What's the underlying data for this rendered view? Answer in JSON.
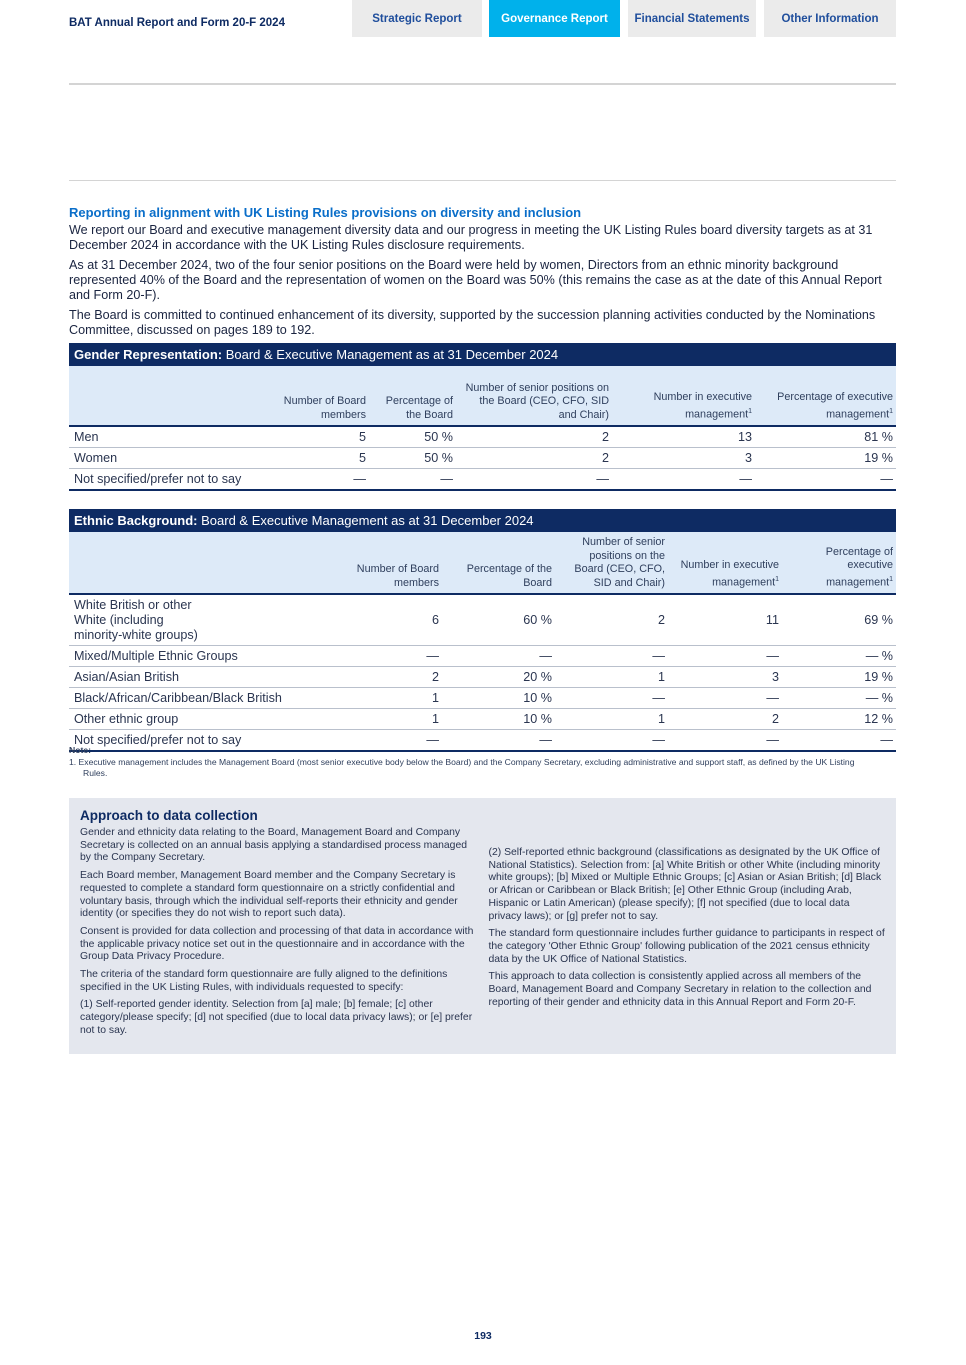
{
  "header": {
    "doc_title": "BAT Annual Report and Form 20-F 2024",
    "tabs": [
      {
        "label": "Strategic Report",
        "active": false
      },
      {
        "label": "Governance Report",
        "active": true
      },
      {
        "label": "Financial Statements",
        "active": false
      },
      {
        "label": "Other Information",
        "active": false
      }
    ]
  },
  "colors": {
    "navy": "#0e2b63",
    "active_tab": "#00b1eb",
    "heading_blue": "#0a6ec9",
    "panel": "#e4e7ee"
  },
  "intro": {
    "heading": "Reporting in alignment with UK Listing Rules provisions on diversity and inclusion",
    "paragraphs": [
      "We report our Board and executive management diversity data and our progress in meeting the UK Listing Rules board diversity targets as at 31 December 2024 in accordance with the UK Listing Rules disclosure requirements.",
      "As at 31 December 2024, two of the four senior positions on the Board were held by women, Directors from an ethnic minority background represented 40% of the Board and the representation of women on the Board was 50% (this remains the case as at the date of this Annual Report and Form 20-F).",
      "The Board is committed to continued enhancement of its diversity, supported by the succession planning activities conducted by the Nominations Committee, discussed on pages 189 to 192."
    ]
  },
  "gender_table": {
    "title_bold": "Gender Representation:",
    "title_rest": " Board & Executive Management as at 31 December 2024",
    "headers": [
      "",
      "Number of Board members",
      "Percentage of the Board",
      "Number of senior positions on the Board (CEO, CFO, SID and Chair)",
      "Number in executive management",
      "Percentage of executive management"
    ],
    "footnote_mark": "1",
    "rows": [
      [
        "Men",
        "5",
        "50 %",
        "2",
        "13",
        "81 %"
      ],
      [
        "Women",
        "5",
        "50 %",
        "2",
        "3",
        "19 %"
      ],
      [
        "Not specified/prefer not to say",
        "—",
        "—",
        "—",
        "—",
        "—"
      ]
    ]
  },
  "ethnic_table": {
    "title_bold": "Ethnic Background:",
    "title_rest": " Board & Executive Management as at 31 December 2024",
    "headers": [
      "",
      "Number of Board members",
      "Percentage of the Board",
      "Number of senior positions on the Board (CEO, CFO, SID and Chair)",
      "Number in executive management",
      "Percentage of executive management"
    ],
    "footnote_mark": "1",
    "rows": [
      [
        "White British or other White (including minority-white groups)",
        "6",
        "60 %",
        "2",
        "11",
        "69 %"
      ],
      [
        "Mixed/Multiple Ethnic Groups",
        "—",
        "—",
        "—",
        "—",
        "— %"
      ],
      [
        "Asian/Asian British",
        "2",
        "20 %",
        "1",
        "3",
        "19 %"
      ],
      [
        "Black/African/Caribbean/Black British",
        "1",
        "10 %",
        "—",
        "—",
        "— %"
      ],
      [
        "Other ethnic group",
        "1",
        "10 %",
        "1",
        "2",
        "12 %"
      ],
      [
        "Not specified/prefer not to say",
        "—",
        "—",
        "—",
        "—",
        "—"
      ]
    ]
  },
  "note": {
    "label": "Note:",
    "items": [
      "1.  Executive management includes the Management Board (most senior executive body below the Board) and the Company Secretary, excluding administrative and support staff, as defined by the UK Listing Rules."
    ]
  },
  "approach": {
    "title": "Approach to data collection",
    "left": [
      "Gender and ethnicity data relating to the Board, Management Board and Company Secretary is collected on an annual basis applying a standardised process managed by the Company Secretary.",
      "Each Board member, Management Board member and the Company Secretary is requested to complete a standard form questionnaire on a strictly confidential and voluntary basis, through which the individual self-reports their ethnicity and gender identity (or specifies they do not wish to report such data).",
      "Consent is provided for data collection and processing of that data in accordance with the applicable privacy notice set out in the questionnaire and in accordance with the Group Data Privacy Procedure.",
      "The criteria of the standard form questionnaire are fully aligned to the definitions specified in the UK Listing Rules, with individuals requested to specify:",
      "(1) Self-reported gender identity. Selection from [a] male; [b] female; [c] other category/please specify; [d] not specified (due to local data privacy laws); or [e] prefer not to say."
    ],
    "right": [
      "(2) Self-reported ethnic background (classifications as designated by the UK Office of National Statistics). Selection from: [a] White British or other White (including minority white groups); [b] Mixed or Multiple Ethnic Groups; [c] Asian or Asian British; [d] Black or African or Caribbean or Black British; [e] Other Ethnic Group (including Arab, Hispanic or Latin American) (please specify); [f] not specified (due to local data privacy laws); or [g] prefer not to say.",
      "The standard form questionnaire includes further guidance to participants in respect of the category 'Other Ethnic Group' following publication of the 2021 census ethnicity data by the UK Office of National Statistics.",
      "This approach to data collection is consistently applied across all members of the Board, Management Board and Company Secretary in relation to the collection and reporting of their gender and ethnicity data in this Annual Report and Form 20-F."
    ]
  },
  "page_number": "193"
}
